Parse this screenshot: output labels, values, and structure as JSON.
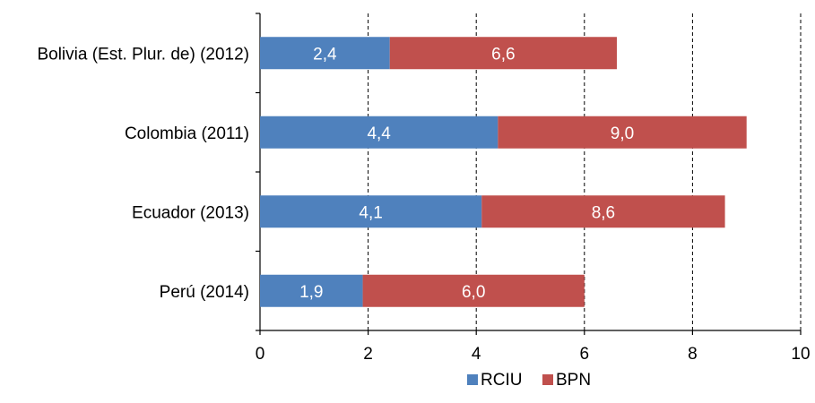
{
  "chart_data": {
    "type": "bar",
    "orientation": "horizontal",
    "stacked": true,
    "categories": [
      "Bolivia (Est. Plur. de) (2012)",
      "Colombia (2011)",
      "Ecuador (2013)",
      "Perú (2014)"
    ],
    "series": [
      {
        "name": "RCIU",
        "color": "#4f81bd",
        "values": [
          2.4,
          4.4,
          4.1,
          1.9
        ],
        "labels": [
          "2,4",
          "4,4",
          "4,1",
          "1,9"
        ]
      },
      {
        "name": "BPN",
        "color": "#c0504d",
        "values": [
          4.2,
          4.6,
          4.5,
          4.1
        ],
        "labels": [
          "6,6",
          "9,0",
          "8,6",
          "6,0"
        ]
      }
    ],
    "xlim": [
      0,
      10
    ],
    "xticks": [
      0,
      2,
      4,
      6,
      8,
      10
    ],
    "xtick_labels": [
      "0",
      "2",
      "4",
      "6",
      "8",
      "10"
    ],
    "gridlines": "vertical dashed",
    "legend": "bottom-center",
    "title": "",
    "xlabel": "",
    "ylabel": ""
  }
}
